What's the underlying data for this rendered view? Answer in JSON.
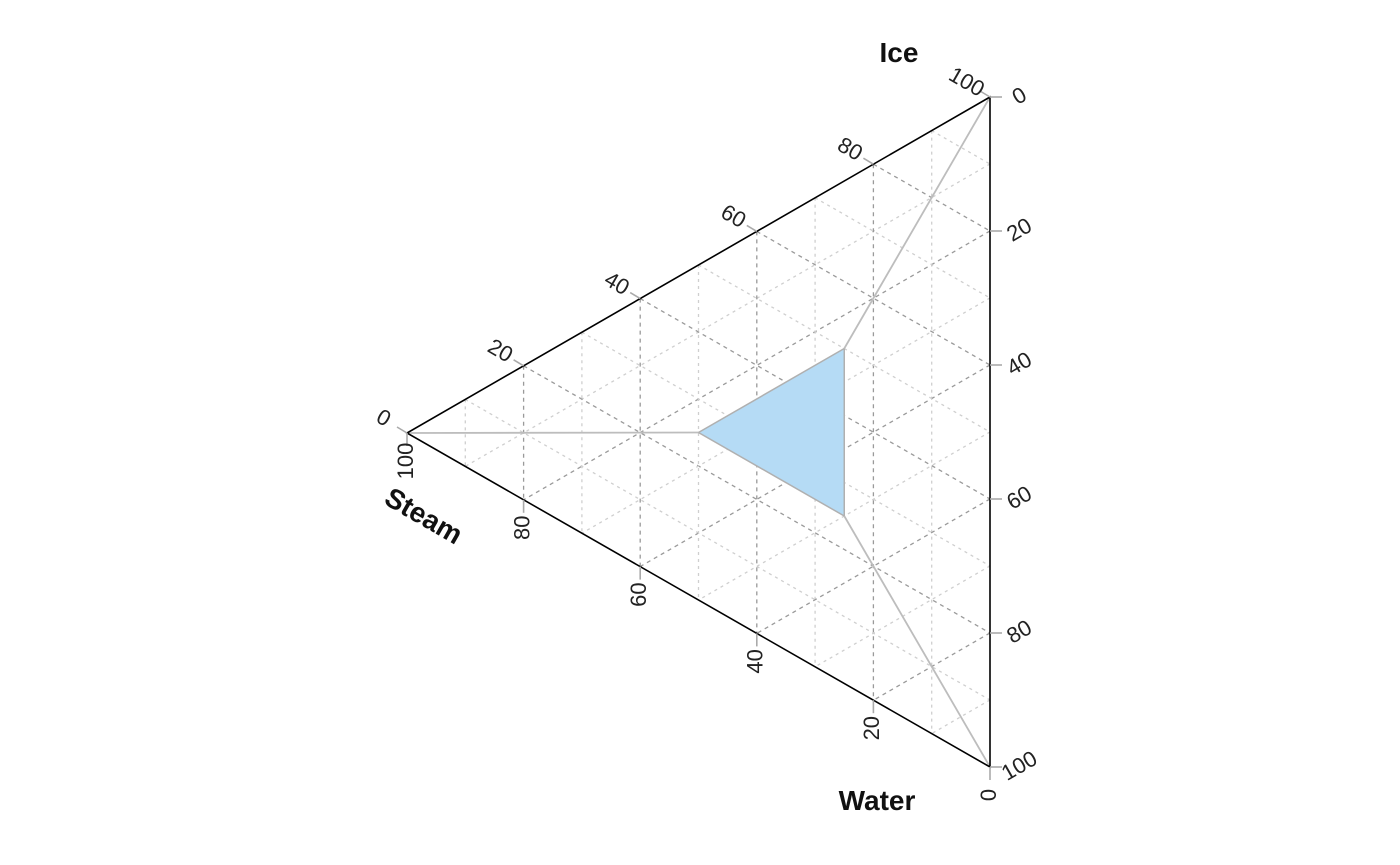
{
  "chart_data": {
    "type": "ternary",
    "axes": {
      "ice": {
        "label": "Ice",
        "ticks": [
          "0",
          "20",
          "40",
          "60",
          "80",
          "100"
        ]
      },
      "steam": {
        "label": "Steam",
        "ticks": [
          "0",
          "20",
          "40",
          "60",
          "80",
          "100"
        ]
      },
      "water": {
        "label": "Water",
        "ticks": [
          "0",
          "20",
          "40",
          "60",
          "80",
          "100"
        ]
      }
    },
    "grid": {
      "major_step": 20,
      "minor_step": 10,
      "style": "dashed"
    },
    "colors": {
      "frame": "#000000",
      "tick": "#aaaaaa",
      "grid_major": "#9a9a9a",
      "grid_minor": "#cfcfcf",
      "region_fill": "#b5dbf5",
      "region_stroke": "#b0b0b0",
      "boundary": "#bdbdbd"
    },
    "region": {
      "name": "",
      "vertices": [
        {
          "ice": 50,
          "steam": 25,
          "water": 25
        },
        {
          "ice": 25,
          "steam": 50,
          "water": 25
        },
        {
          "ice": 25,
          "steam": 25,
          "water": 50
        }
      ]
    },
    "boundary_lines": [
      {
        "from": {
          "ice": 50,
          "steam": 25,
          "water": 25
        },
        "to": {
          "ice": 100,
          "steam": 0,
          "water": 0
        }
      },
      {
        "from": {
          "ice": 25,
          "steam": 50,
          "water": 25
        },
        "to": {
          "ice": 0,
          "steam": 100,
          "water": 0
        }
      },
      {
        "from": {
          "ice": 25,
          "steam": 25,
          "water": 50
        },
        "to": {
          "ice": 0,
          "steam": 0,
          "water": 100
        }
      }
    ]
  }
}
